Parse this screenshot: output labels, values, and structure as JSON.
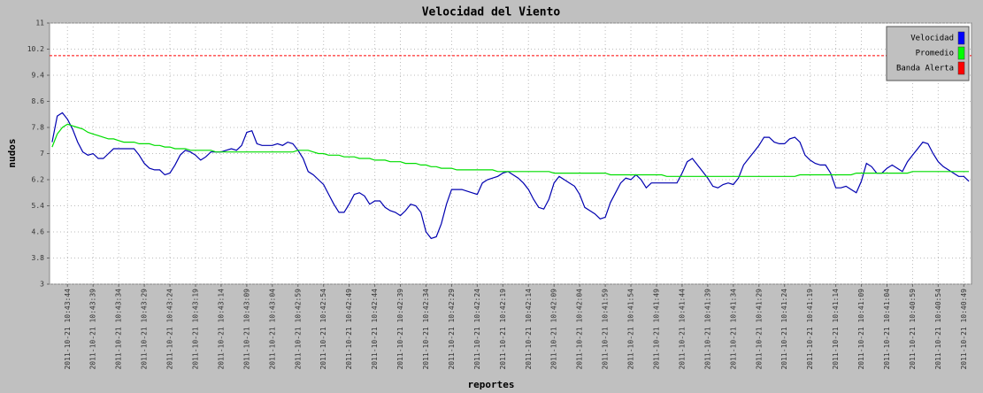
{
  "chart_data": {
    "type": "line",
    "title": "Velocidad del Viento",
    "x_label": "reportes",
    "y_label": "nudos",
    "ylim": [
      3,
      11
    ],
    "yticks": [
      3,
      3.8,
      4.6,
      5.4,
      6.2,
      7,
      7.8,
      8.6,
      9.4,
      10.2,
      11
    ],
    "grid": true,
    "legend": "upper right",
    "categories": [
      null,
      null,
      null,
      "2011-10-21 10:43:44",
      null,
      null,
      null,
      null,
      "2011-10-21 10:43:39",
      null,
      null,
      null,
      null,
      "2011-10-21 10:43:34",
      null,
      null,
      null,
      null,
      "2011-10-21 10:43:29",
      null,
      null,
      null,
      null,
      "2011-10-21 10:43:24",
      null,
      null,
      null,
      null,
      "2011-10-21 10:43:19",
      null,
      null,
      null,
      null,
      "2011-10-21 10:43:14",
      null,
      null,
      null,
      null,
      "2011-10-21 10:43:09",
      null,
      null,
      null,
      null,
      "2011-10-21 10:43:04",
      null,
      null,
      null,
      null,
      "2011-10-21 10:42:59",
      null,
      null,
      null,
      null,
      "2011-10-21 10:42:54",
      null,
      null,
      null,
      null,
      "2011-10-21 10:42:49",
      null,
      null,
      null,
      null,
      "2011-10-21 10:42:44",
      null,
      null,
      null,
      null,
      "2011-10-21 10:42:39",
      null,
      null,
      null,
      null,
      "2011-10-21 10:42:34",
      null,
      null,
      null,
      null,
      "2011-10-21 10:42:29",
      null,
      null,
      null,
      null,
      "2011-10-21 10:42:24",
      null,
      null,
      null,
      null,
      "2011-10-21 10:42:19",
      null,
      null,
      null,
      null,
      "2011-10-21 10:42:14",
      null,
      null,
      null,
      null,
      "2011-10-21 10:42:09",
      null,
      null,
      null,
      null,
      "2011-10-21 10:42:04",
      null,
      null,
      null,
      null,
      "2011-10-21 10:41:59",
      null,
      null,
      null,
      null,
      "2011-10-21 10:41:54",
      null,
      null,
      null,
      null,
      "2011-10-21 10:41:49",
      null,
      null,
      null,
      null,
      "2011-10-21 10:41:44",
      null,
      null,
      null,
      null,
      "2011-10-21 10:41:39",
      null,
      null,
      null,
      null,
      "2011-10-21 10:41:34",
      null,
      null,
      null,
      null,
      "2011-10-21 10:41:29",
      null,
      null,
      null,
      null,
      "2011-10-21 10:41:24",
      null,
      null,
      null,
      null,
      "2011-10-21 10:41:19",
      null,
      null,
      null,
      null,
      "2011-10-21 10:41:14",
      null,
      null,
      null,
      null,
      "2011-10-21 10:41:09",
      null,
      null,
      null,
      null,
      "2011-10-21 10:41:04",
      null,
      null,
      null,
      null,
      "2011-10-21 10:40:59",
      null,
      null,
      null,
      null,
      "2011-10-21 10:40:54",
      null,
      null,
      null,
      null,
      "2011-10-21 10:40:49",
      null
    ],
    "series": [
      {
        "name": "Velocidad",
        "color": "#0000ff",
        "line_color": "#0000b0",
        "values": [
          7.35,
          8.15,
          8.25,
          8.05,
          7.75,
          7.35,
          7.05,
          6.95,
          7.0,
          6.85,
          6.85,
          7.0,
          7.15,
          7.15,
          7.15,
          7.15,
          7.15,
          6.95,
          6.7,
          6.55,
          6.5,
          6.5,
          6.35,
          6.4,
          6.65,
          6.95,
          7.1,
          7.05,
          6.95,
          6.8,
          6.9,
          7.05,
          7.05,
          7.05,
          7.1,
          7.15,
          7.1,
          7.25,
          7.65,
          7.7,
          7.3,
          7.25,
          7.25,
          7.25,
          7.3,
          7.25,
          7.35,
          7.3,
          7.1,
          6.85,
          6.45,
          6.35,
          6.2,
          6.05,
          5.75,
          5.45,
          5.2,
          5.2,
          5.45,
          5.75,
          5.8,
          5.7,
          5.45,
          5.55,
          5.55,
          5.35,
          5.25,
          5.2,
          5.1,
          5.25,
          5.45,
          5.4,
          5.2,
          4.6,
          4.4,
          4.45,
          4.85,
          5.45,
          5.9,
          5.9,
          5.9,
          5.85,
          5.8,
          5.75,
          6.1,
          6.2,
          6.25,
          6.3,
          6.4,
          6.45,
          6.35,
          6.25,
          6.1,
          5.9,
          5.6,
          5.35,
          5.3,
          5.6,
          6.1,
          6.3,
          6.2,
          6.1,
          6.0,
          5.75,
          5.35,
          5.25,
          5.15,
          5.0,
          5.05,
          5.5,
          5.8,
          6.1,
          6.25,
          6.2,
          6.35,
          6.2,
          5.95,
          6.1,
          6.1,
          6.1,
          6.1,
          6.1,
          6.1,
          6.4,
          6.75,
          6.85,
          6.65,
          6.45,
          6.25,
          6.0,
          5.95,
          6.05,
          6.1,
          6.05,
          6.25,
          6.65,
          6.85,
          7.05,
          7.25,
          7.5,
          7.5,
          7.35,
          7.3,
          7.3,
          7.45,
          7.5,
          7.35,
          6.95,
          6.8,
          6.7,
          6.65,
          6.65,
          6.4,
          5.95,
          5.95,
          6.0,
          5.9,
          5.8,
          6.15,
          6.7,
          6.6,
          6.4,
          6.4,
          6.55,
          6.65,
          6.55,
          6.45,
          6.75,
          6.95,
          7.15,
          7.35,
          7.3,
          7.0,
          6.75,
          6.6,
          6.5,
          6.4,
          6.3,
          6.3,
          6.15
        ]
      },
      {
        "name": "Promedio",
        "color": "#00ff00",
        "line_color": "#00dd00",
        "values": [
          7.2,
          7.6,
          7.8,
          7.9,
          7.85,
          7.8,
          7.75,
          7.65,
          7.6,
          7.55,
          7.5,
          7.45,
          7.45,
          7.4,
          7.35,
          7.35,
          7.35,
          7.3,
          7.3,
          7.3,
          7.25,
          7.25,
          7.2,
          7.2,
          7.15,
          7.15,
          7.15,
          7.1,
          7.1,
          7.1,
          7.1,
          7.1,
          7.05,
          7.05,
          7.05,
          7.05,
          7.05,
          7.05,
          7.05,
          7.05,
          7.05,
          7.05,
          7.05,
          7.05,
          7.05,
          7.05,
          7.05,
          7.05,
          7.1,
          7.1,
          7.1,
          7.05,
          7.0,
          7.0,
          6.95,
          6.95,
          6.95,
          6.9,
          6.9,
          6.9,
          6.85,
          6.85,
          6.85,
          6.8,
          6.8,
          6.8,
          6.75,
          6.75,
          6.75,
          6.7,
          6.7,
          6.7,
          6.65,
          6.65,
          6.6,
          6.6,
          6.55,
          6.55,
          6.55,
          6.5,
          6.5,
          6.5,
          6.5,
          6.5,
          6.5,
          6.5,
          6.5,
          6.45,
          6.45,
          6.45,
          6.45,
          6.45,
          6.45,
          6.45,
          6.45,
          6.45,
          6.45,
          6.45,
          6.4,
          6.4,
          6.4,
          6.4,
          6.4,
          6.4,
          6.4,
          6.4,
          6.4,
          6.4,
          6.4,
          6.35,
          6.35,
          6.35,
          6.35,
          6.35,
          6.35,
          6.35,
          6.35,
          6.35,
          6.35,
          6.35,
          6.3,
          6.3,
          6.3,
          6.3,
          6.3,
          6.3,
          6.3,
          6.3,
          6.3,
          6.3,
          6.3,
          6.3,
          6.3,
          6.3,
          6.3,
          6.3,
          6.3,
          6.3,
          6.3,
          6.3,
          6.3,
          6.3,
          6.3,
          6.3,
          6.3,
          6.3,
          6.35,
          6.35,
          6.35,
          6.35,
          6.35,
          6.35,
          6.35,
          6.35,
          6.35,
          6.35,
          6.35,
          6.4,
          6.4,
          6.4,
          6.4,
          6.4,
          6.4,
          6.4,
          6.4,
          6.4,
          6.4,
          6.4,
          6.45,
          6.45,
          6.45,
          6.45,
          6.45,
          6.45,
          6.45,
          6.45,
          6.45,
          6.45,
          6.45,
          6.45
        ]
      }
    ],
    "alert_band": {
      "name": "Banda Alerta",
      "color": "#ff0000",
      "value": 10
    }
  }
}
